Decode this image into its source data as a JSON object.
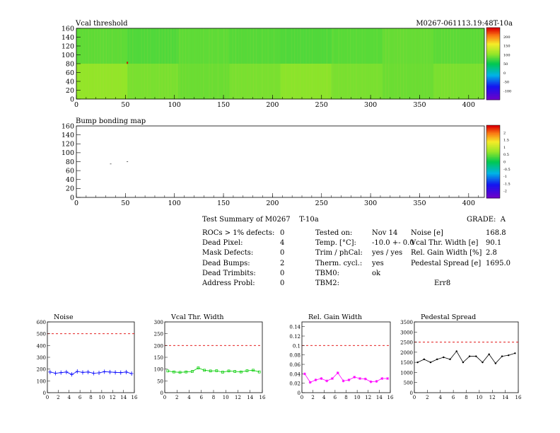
{
  "maps": [
    {
      "title": "Vcal threshold",
      "module_id": "M0267-061113.19:48T-10a",
      "x_ticks": [
        "0",
        "50",
        "100",
        "150",
        "200",
        "250",
        "300",
        "350",
        "400"
      ],
      "y_ticks": [
        "0",
        "20",
        "40",
        "60",
        "80",
        "100",
        "120",
        "140",
        "160"
      ],
      "colorbar_ticks": [
        "-100",
        "-50",
        "0",
        "50",
        "100",
        "150",
        "200"
      ]
    },
    {
      "title": "Bump bonding map",
      "x_ticks": [
        "0",
        "50",
        "100",
        "150",
        "200",
        "250",
        "300",
        "350",
        "400"
      ],
      "y_ticks": [
        "0",
        "20",
        "40",
        "60",
        "80",
        "100",
        "120",
        "140",
        "160"
      ],
      "colorbar_ticks": [
        "-2",
        "-1.5",
        "-1",
        "-0.5",
        "0",
        "0.5",
        "1",
        "1.5",
        "2"
      ]
    }
  ],
  "summary": {
    "heading": "Test Summary of M0267",
    "suffix": "T-10a",
    "grade_label": "GRADE:",
    "grade": "A",
    "left": [
      {
        "label": "ROCs > 1% defects:",
        "value": "0"
      },
      {
        "label": "Dead Pixel:",
        "value": "4"
      },
      {
        "label": "Mask Defects:",
        "value": "0"
      },
      {
        "label": "Dead Bumps:",
        "value": "2"
      },
      {
        "label": "Dead Trimbits:",
        "value": "0"
      },
      {
        "label": "Address Probl:",
        "value": "0"
      }
    ],
    "middle": [
      {
        "label": "Tested on:",
        "value": "Nov 14"
      },
      {
        "label": "Temp. [°C]:",
        "value": "-10.0 +- 0.0"
      },
      {
        "label": "Trim / phCal:",
        "value": "yes / yes"
      },
      {
        "label": "Therm. cycl.:",
        "value": "yes"
      },
      {
        "label": "TBM0:",
        "value": "ok"
      },
      {
        "label": "TBM2:",
        "value": "Err8"
      }
    ],
    "right": [
      {
        "label": "Noise [e]",
        "value": "168.8"
      },
      {
        "label": "Vcal Thr. Width [e]",
        "value": "90.1"
      },
      {
        "label": "Rel. Gain Width [%]",
        "value": "2.8"
      },
      {
        "label": "Pedestal Spread [e]",
        "value": "1695.0"
      }
    ]
  },
  "chart_data": [
    {
      "type": "heatmap",
      "title": "Vcal threshold",
      "xlim": [
        0,
        416
      ],
      "ylim": [
        0,
        160
      ],
      "zlim": [
        -150,
        250
      ],
      "roc_mean_values_top": [
        45,
        40,
        45,
        42,
        40,
        43,
        48,
        44
      ],
      "roc_mean_values_bottom": [
        65,
        55,
        50,
        55,
        62,
        55,
        50,
        55
      ],
      "hot_pixel": {
        "x": 52,
        "y": 82
      }
    },
    {
      "type": "heatmap",
      "title": "Bump bonding map",
      "xlim": [
        0,
        416
      ],
      "ylim": [
        0,
        160
      ],
      "dead_bumps": [
        {
          "x": 35,
          "y": 75
        },
        {
          "x": 52,
          "y": 80
        }
      ]
    },
    {
      "type": "line",
      "title": "Noise",
      "x": [
        0,
        1,
        2,
        3,
        4,
        5,
        6,
        7,
        8,
        9,
        10,
        11,
        12,
        13,
        14,
        15
      ],
      "values": [
        175,
        165,
        170,
        175,
        155,
        180,
        172,
        175,
        165,
        168,
        178,
        175,
        172,
        170,
        175,
        162
      ],
      "threshold": 500,
      "ylim": [
        0,
        600
      ],
      "xlim": [
        0,
        16
      ],
      "y_ticks": [
        "0",
        "100",
        "200",
        "300",
        "400",
        "500",
        "600"
      ],
      "x_ticks": [
        "0",
        "2",
        "4",
        "6",
        "8",
        "10",
        "12",
        "14",
        "16"
      ],
      "color": "#0000ff",
      "marker": "cross"
    },
    {
      "type": "line",
      "title": "Vcal Thr. Width",
      "x": [
        0,
        1,
        2,
        3,
        4,
        5,
        6,
        7,
        8,
        9,
        10,
        11,
        12,
        13,
        14,
        15
      ],
      "values": [
        92,
        88,
        86,
        88,
        90,
        105,
        95,
        92,
        93,
        87,
        92,
        90,
        88,
        93,
        95,
        88
      ],
      "threshold": 200,
      "ylim": [
        0,
        300
      ],
      "xlim": [
        0,
        16
      ],
      "y_ticks": [
        "0",
        "50",
        "100",
        "150",
        "200",
        "250",
        "300"
      ],
      "x_ticks": [
        "0",
        "2",
        "4",
        "6",
        "8",
        "10",
        "12",
        "14",
        "16"
      ],
      "color": "#00cc00",
      "marker": "square"
    },
    {
      "type": "line",
      "title": "Rel. Gain Width",
      "x": [
        0,
        1,
        2,
        3,
        4,
        5,
        6,
        7,
        8,
        9,
        10,
        11,
        12,
        13,
        14,
        15
      ],
      "values": [
        0.04,
        0.022,
        0.027,
        0.03,
        0.025,
        0.03,
        0.042,
        0.025,
        0.027,
        0.033,
        0.03,
        0.029,
        0.023,
        0.024,
        0.03,
        0.03
      ],
      "threshold": 0.1,
      "ylim": [
        0,
        0.15
      ],
      "xlim": [
        0,
        16
      ],
      "y_ticks": [
        "0",
        "0.02",
        "0.04",
        "0.06",
        "0.08",
        "0.1",
        "0.12",
        "0.14"
      ],
      "x_ticks": [
        "0",
        "2",
        "4",
        "6",
        "8",
        "10",
        "12",
        "14",
        "16"
      ],
      "color": "#ff00ff",
      "marker": "star"
    },
    {
      "type": "line",
      "title": "Pedestal Spread",
      "x": [
        0,
        1,
        2,
        3,
        4,
        5,
        6,
        7,
        8,
        9,
        10,
        11,
        12,
        13,
        14,
        15
      ],
      "values": [
        1500,
        1650,
        1500,
        1650,
        1750,
        1650,
        2050,
        1500,
        1800,
        1800,
        1500,
        1900,
        1450,
        1800,
        1850,
        1950
      ],
      "threshold": 2500,
      "ylim": [
        0,
        3500
      ],
      "xlim": [
        0,
        16
      ],
      "y_ticks": [
        "0",
        "500",
        "1000",
        "1500",
        "2000",
        "2500",
        "3000",
        "3500"
      ],
      "x_ticks": [
        "0",
        "2",
        "4",
        "6",
        "8",
        "10",
        "12",
        "14",
        "16"
      ],
      "color": "#000000",
      "marker": "dot"
    }
  ]
}
